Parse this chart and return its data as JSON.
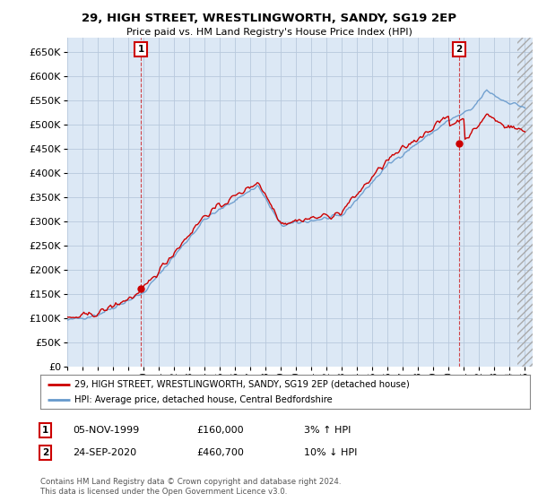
{
  "title": "29, HIGH STREET, WRESTLINGWORTH, SANDY, SG19 2EP",
  "subtitle": "Price paid vs. HM Land Registry's House Price Index (HPI)",
  "red_label": "29, HIGH STREET, WRESTLINGWORTH, SANDY, SG19 2EP (detached house)",
  "blue_label": "HPI: Average price, detached house, Central Bedfordshire",
  "annotation1_label": "1",
  "annotation1_date": "05-NOV-1999",
  "annotation1_price": "£160,000",
  "annotation1_hpi": "3% ↑ HPI",
  "annotation2_label": "2",
  "annotation2_date": "24-SEP-2020",
  "annotation2_price": "£460,700",
  "annotation2_hpi": "10% ↓ HPI",
  "footer": "Contains HM Land Registry data © Crown copyright and database right 2024.\nThis data is licensed under the Open Government Licence v3.0.",
  "ylim_min": 0,
  "ylim_max": 680000,
  "yticks": [
    0,
    50000,
    100000,
    150000,
    200000,
    250000,
    300000,
    350000,
    400000,
    450000,
    500000,
    550000,
    600000,
    650000
  ],
  "xmin": 1995,
  "xmax": 2025.5,
  "hatch_start": 2024.5,
  "sale1_t": 1999.833,
  "sale1_price": 160000,
  "sale2_t": 2020.667,
  "sale2_price": 460700,
  "background_color": "#ffffff",
  "plot_bg_color": "#dce8f5",
  "grid_color": "#b8c8dc",
  "red_color": "#cc0000",
  "blue_color": "#6699cc",
  "hatch_color": "#cccccc"
}
